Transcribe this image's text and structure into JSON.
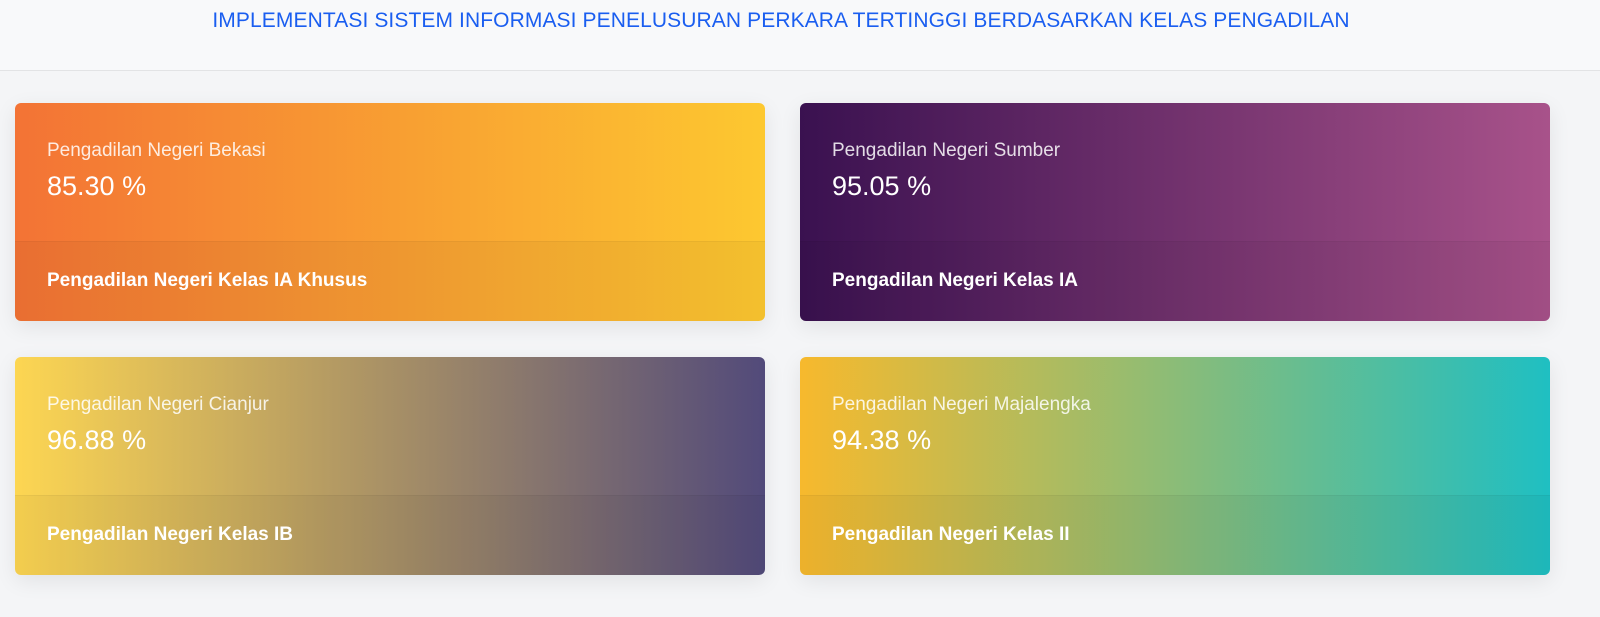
{
  "header": {
    "title": "IMPLEMENTASI SISTEM INFORMASI PENELUSURAN PERKARA TERTINGGI BERDASARKAN KELAS PENGADILAN"
  },
  "cards": [
    {
      "court": "Pengadilan Negeri Bekasi",
      "value": "85.30 %",
      "class": "Pengadilan Negeri Kelas IA Khusus",
      "gradient": [
        "#f37335",
        "#fdc830"
      ]
    },
    {
      "court": "Pengadilan Negeri Sumber",
      "value": "95.05 %",
      "class": "Pengadilan Negeri Kelas IA",
      "gradient": [
        "#3a1150",
        "#a8528a"
      ]
    },
    {
      "court": "Pengadilan Negeri Cianjur",
      "value": "96.88 %",
      "class": "Pengadilan Negeri Kelas IB",
      "gradient": [
        "#fdd652",
        "#524a7a"
      ]
    },
    {
      "court": "Pengadilan Negeri Majalengka",
      "value": "94.38 %",
      "class": "Pengadilan Negeri Kelas II",
      "gradient": [
        "#f7b92d",
        "#1fbfc2"
      ]
    }
  ]
}
